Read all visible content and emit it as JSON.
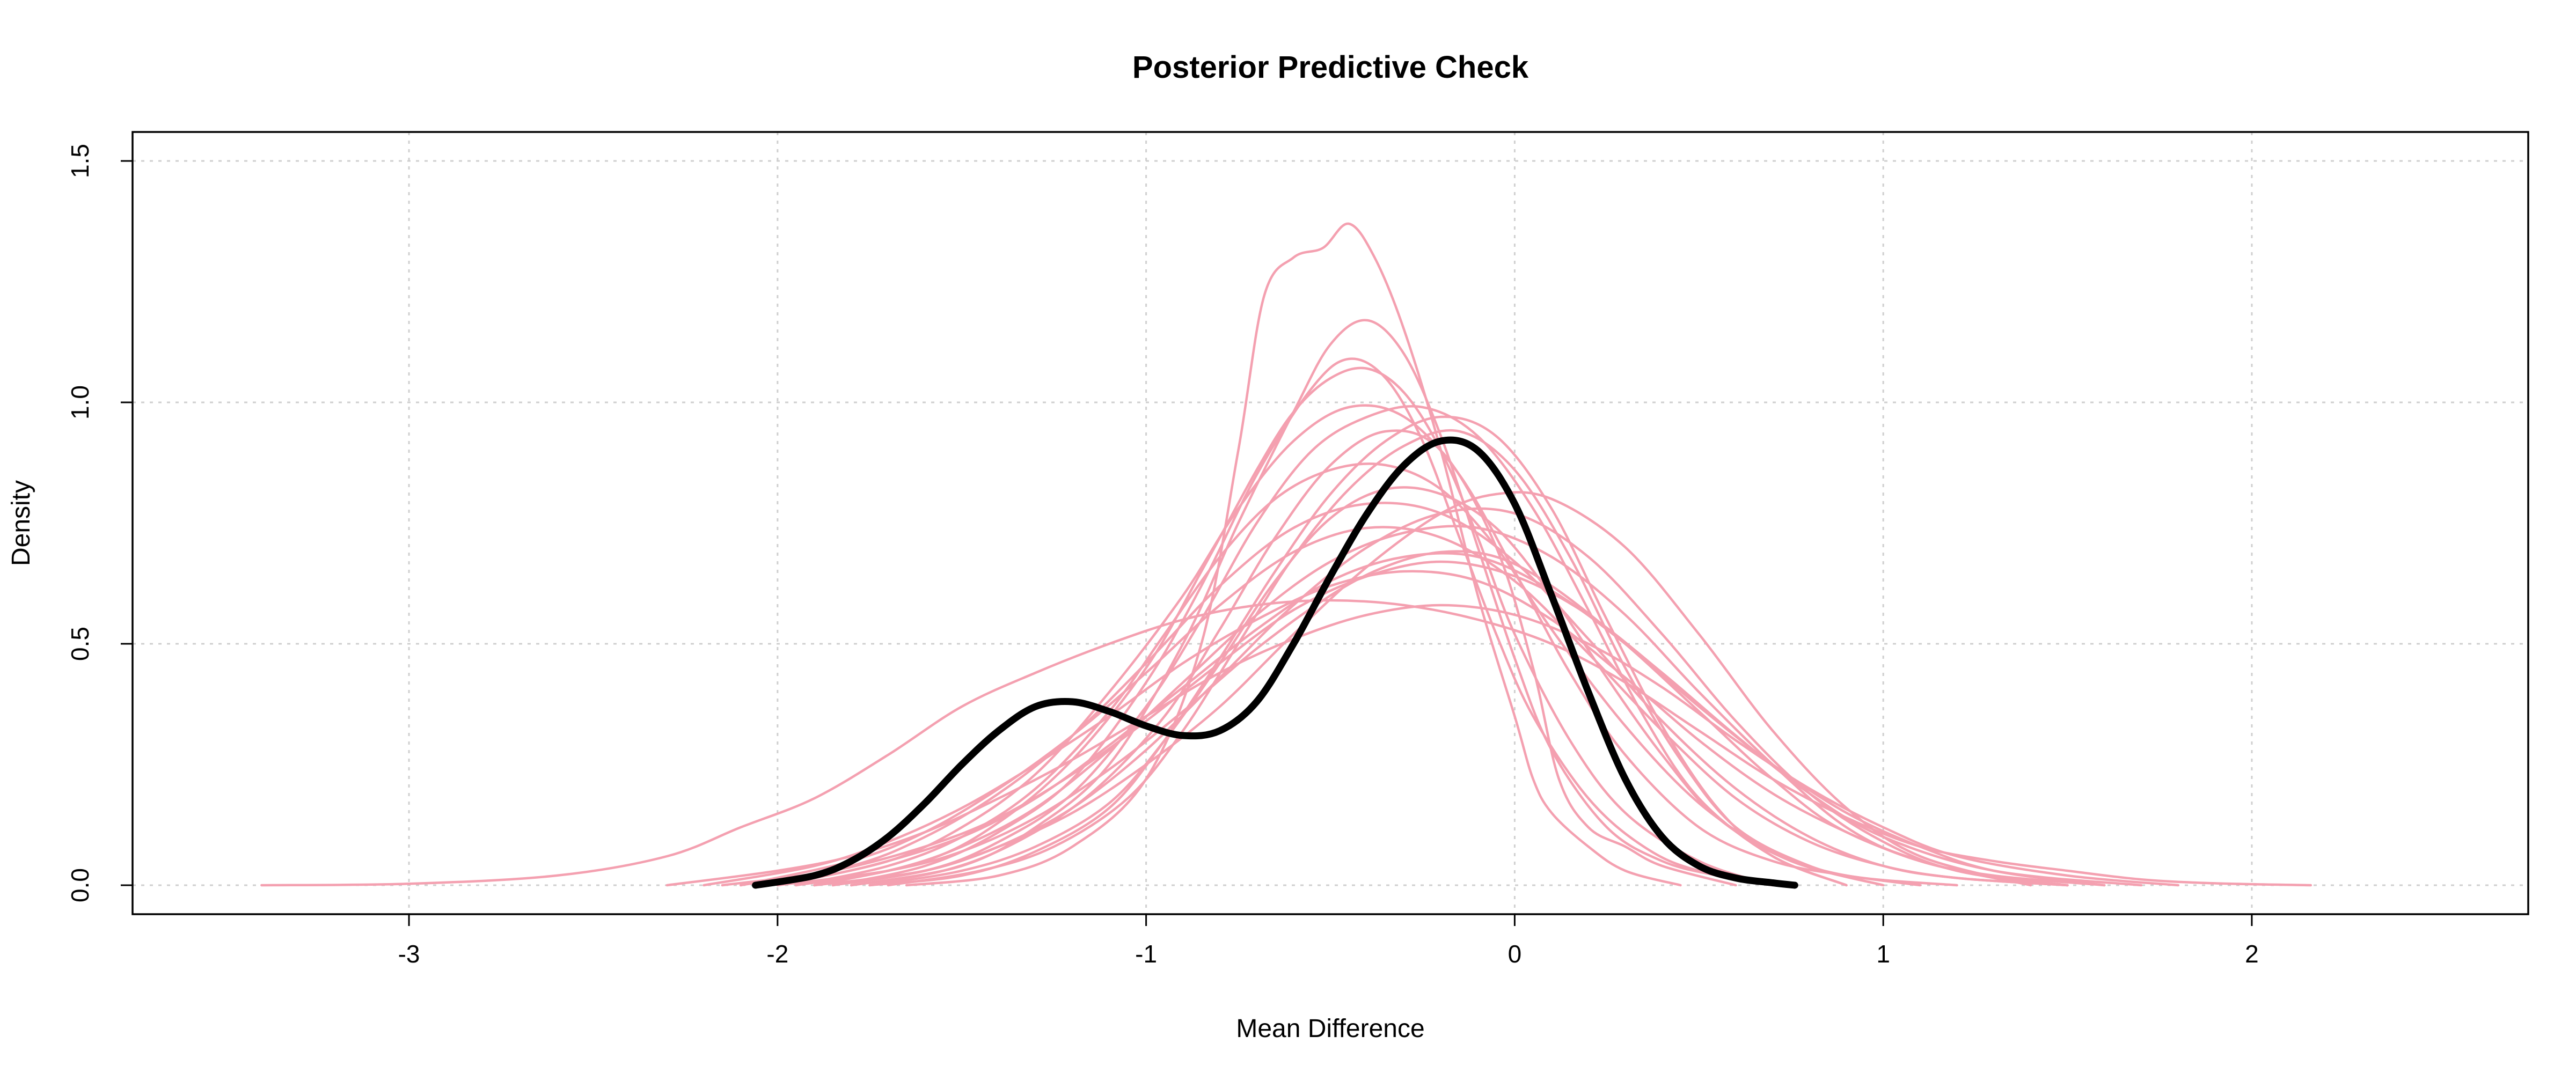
{
  "chart_data": {
    "type": "line",
    "title": "Posterior Predictive Check",
    "xlabel": "Mean Difference",
    "ylabel": "Density",
    "xlim": [
      -3.75,
      2.75
    ],
    "ylim": [
      -0.06,
      1.56
    ],
    "x_ticks": [
      -3,
      -2,
      -1,
      0,
      1,
      2
    ],
    "x_tick_labels": [
      "-3",
      "-2",
      "-1",
      "0",
      "1",
      "2"
    ],
    "y_ticks": [
      0,
      0.5,
      1,
      1.5
    ],
    "y_tick_labels": [
      "0.0",
      "0.5",
      "1.0",
      "1.5"
    ],
    "grid": true,
    "colors": {
      "replicated": "#f4a0b0",
      "observed": "#000000"
    },
    "observed": {
      "x": [
        -2.06,
        -1.9,
        -1.8,
        -1.7,
        -1.6,
        -1.5,
        -1.4,
        -1.3,
        -1.2,
        -1.1,
        -1.0,
        -0.9,
        -0.8,
        -0.7,
        -0.6,
        -0.5,
        -0.4,
        -0.3,
        -0.2,
        -0.1,
        0.0,
        0.1,
        0.2,
        0.3,
        0.4,
        0.5,
        0.6,
        0.7,
        0.76
      ],
      "y": [
        0.0,
        0.02,
        0.05,
        0.1,
        0.17,
        0.25,
        0.32,
        0.37,
        0.38,
        0.36,
        0.33,
        0.31,
        0.32,
        0.38,
        0.5,
        0.64,
        0.77,
        0.87,
        0.92,
        0.9,
        0.79,
        0.6,
        0.4,
        0.22,
        0.1,
        0.04,
        0.015,
        0.005,
        0.0
      ]
    },
    "replicated": [
      {
        "x": [
          -3.4,
          -3.0,
          -2.6,
          -2.3,
          -2.1,
          -1.9,
          -1.7,
          -1.5,
          -1.3,
          -1.1,
          -0.9,
          -0.7,
          -0.5,
          -0.3,
          -0.1,
          0.1,
          0.3,
          0.5,
          0.7,
          0.9,
          1.1,
          1.3,
          1.5,
          1.7,
          1.9,
          2.16
        ],
        "y": [
          0.0,
          0.003,
          0.02,
          0.06,
          0.12,
          0.18,
          0.27,
          0.37,
          0.44,
          0.5,
          0.55,
          0.58,
          0.59,
          0.58,
          0.55,
          0.5,
          0.42,
          0.32,
          0.22,
          0.14,
          0.08,
          0.05,
          0.03,
          0.012,
          0.004,
          0.0
        ]
      },
      {
        "x": [
          -1.65,
          -1.4,
          -1.2,
          -1.0,
          -0.85,
          -0.75,
          -0.68,
          -0.6,
          -0.52,
          -0.45,
          -0.38,
          -0.3,
          -0.2,
          -0.1,
          0.0,
          0.05,
          0.1,
          0.2,
          0.3,
          0.45
        ],
        "y": [
          0.0,
          0.02,
          0.08,
          0.22,
          0.5,
          0.9,
          1.22,
          1.3,
          1.32,
          1.37,
          1.3,
          1.15,
          0.9,
          0.6,
          0.35,
          0.22,
          0.15,
          0.08,
          0.03,
          0.0
        ]
      },
      {
        "x": [
          -1.8,
          -1.5,
          -1.3,
          -1.1,
          -0.9,
          -0.75,
          -0.6,
          -0.5,
          -0.4,
          -0.3,
          -0.2,
          -0.1,
          0.0,
          0.1,
          0.25,
          0.4,
          0.55,
          0.7
        ],
        "y": [
          0.0,
          0.04,
          0.12,
          0.25,
          0.5,
          0.75,
          0.98,
          1.12,
          1.17,
          1.1,
          0.93,
          0.7,
          0.47,
          0.28,
          0.12,
          0.05,
          0.02,
          0.0
        ]
      },
      {
        "x": [
          -1.9,
          -1.6,
          -1.4,
          -1.2,
          -1.0,
          -0.85,
          -0.7,
          -0.6,
          -0.5,
          -0.4,
          -0.3,
          -0.2,
          -0.1,
          0.0,
          0.15,
          0.3,
          0.5,
          0.7
        ],
        "y": [
          0.0,
          0.05,
          0.13,
          0.26,
          0.45,
          0.65,
          0.86,
          0.98,
          1.05,
          1.07,
          1.02,
          0.9,
          0.72,
          0.52,
          0.3,
          0.15,
          0.05,
          0.0
        ]
      },
      {
        "x": [
          -1.85,
          -1.6,
          -1.4,
          -1.2,
          -1.0,
          -0.85,
          -0.7,
          -0.55,
          -0.45,
          -0.35,
          -0.25,
          -0.15,
          -0.05,
          0.05,
          0.2,
          0.35,
          0.5,
          0.75
        ],
        "y": [
          0.0,
          0.04,
          0.11,
          0.22,
          0.42,
          0.62,
          0.85,
          1.03,
          1.09,
          1.05,
          0.92,
          0.72,
          0.52,
          0.35,
          0.18,
          0.08,
          0.03,
          0.0
        ]
      },
      {
        "x": [
          -2.0,
          -1.7,
          -1.5,
          -1.3,
          -1.1,
          -0.9,
          -0.75,
          -0.6,
          -0.45,
          -0.3,
          -0.15,
          0.0,
          0.15,
          0.3,
          0.5,
          0.7,
          0.9,
          1.1
        ],
        "y": [
          0.0,
          0.05,
          0.12,
          0.23,
          0.4,
          0.6,
          0.78,
          0.92,
          0.99,
          0.97,
          0.85,
          0.65,
          0.44,
          0.27,
          0.12,
          0.05,
          0.02,
          0.0
        ]
      },
      {
        "x": [
          -1.95,
          -1.7,
          -1.5,
          -1.3,
          -1.1,
          -0.95,
          -0.8,
          -0.65,
          -0.5,
          -0.35,
          -0.2,
          -0.05,
          0.1,
          0.3,
          0.5,
          0.7,
          0.9,
          1.2
        ],
        "y": [
          0.0,
          0.04,
          0.1,
          0.2,
          0.36,
          0.52,
          0.68,
          0.8,
          0.86,
          0.87,
          0.82,
          0.7,
          0.53,
          0.33,
          0.17,
          0.07,
          0.02,
          0.0
        ]
      },
      {
        "x": [
          -2.1,
          -1.8,
          -1.6,
          -1.4,
          -1.2,
          -1.0,
          -0.8,
          -0.6,
          -0.4,
          -0.2,
          0.0,
          0.2,
          0.4,
          0.6,
          0.8,
          1.0,
          1.2,
          1.5
        ],
        "y": [
          0.0,
          0.05,
          0.11,
          0.2,
          0.31,
          0.44,
          0.58,
          0.69,
          0.74,
          0.72,
          0.63,
          0.48,
          0.32,
          0.18,
          0.09,
          0.04,
          0.015,
          0.0
        ]
      },
      {
        "x": [
          -2.2,
          -1.9,
          -1.7,
          -1.5,
          -1.3,
          -1.1,
          -0.9,
          -0.7,
          -0.5,
          -0.3,
          -0.1,
          0.1,
          0.3,
          0.5,
          0.7,
          0.9,
          1.1,
          1.3,
          1.6
        ],
        "y": [
          0.0,
          0.04,
          0.09,
          0.16,
          0.25,
          0.35,
          0.46,
          0.55,
          0.62,
          0.65,
          0.63,
          0.55,
          0.43,
          0.3,
          0.19,
          0.11,
          0.05,
          0.02,
          0.0
        ]
      },
      {
        "x": [
          -1.9,
          -1.6,
          -1.4,
          -1.2,
          -1.0,
          -0.85,
          -0.7,
          -0.55,
          -0.4,
          -0.25,
          -0.1,
          0.05,
          0.2,
          0.35,
          0.5,
          0.7,
          0.9
        ],
        "y": [
          0.0,
          0.03,
          0.09,
          0.19,
          0.37,
          0.55,
          0.75,
          0.9,
          0.97,
          0.99,
          0.93,
          0.78,
          0.57,
          0.35,
          0.18,
          0.06,
          0.0
        ]
      },
      {
        "x": [
          -1.7,
          -1.45,
          -1.25,
          -1.05,
          -0.9,
          -0.75,
          -0.6,
          -0.45,
          -0.3,
          -0.15,
          0.0,
          0.15,
          0.3,
          0.45,
          0.6,
          0.8,
          1.0
        ],
        "y": [
          0.0,
          0.03,
          0.08,
          0.18,
          0.32,
          0.5,
          0.68,
          0.82,
          0.91,
          0.94,
          0.86,
          0.68,
          0.45,
          0.26,
          0.12,
          0.04,
          0.0
        ]
      },
      {
        "x": [
          -1.75,
          -1.5,
          -1.3,
          -1.1,
          -0.95,
          -0.8,
          -0.65,
          -0.5,
          -0.35,
          -0.2,
          -0.05,
          0.1,
          0.25,
          0.4,
          0.55,
          0.7,
          0.9
        ],
        "y": [
          0.0,
          0.02,
          0.07,
          0.16,
          0.3,
          0.47,
          0.65,
          0.81,
          0.92,
          0.97,
          0.93,
          0.78,
          0.55,
          0.33,
          0.16,
          0.06,
          0.0
        ]
      },
      {
        "x": [
          -2.0,
          -1.75,
          -1.5,
          -1.3,
          -1.1,
          -0.9,
          -0.7,
          -0.5,
          -0.3,
          -0.1,
          0.1,
          0.3,
          0.5,
          0.7,
          0.9,
          1.1,
          1.3,
          1.6
        ],
        "y": [
          0.0,
          0.04,
          0.1,
          0.18,
          0.29,
          0.41,
          0.53,
          0.63,
          0.68,
          0.68,
          0.61,
          0.5,
          0.37,
          0.25,
          0.15,
          0.08,
          0.03,
          0.0
        ]
      },
      {
        "x": [
          -1.85,
          -1.6,
          -1.4,
          -1.2,
          -1.0,
          -0.8,
          -0.6,
          -0.4,
          -0.2,
          0.0,
          0.2,
          0.4,
          0.6,
          0.8,
          1.0,
          1.2,
          1.5
        ],
        "y": [
          0.0,
          0.03,
          0.08,
          0.16,
          0.28,
          0.43,
          0.58,
          0.7,
          0.77,
          0.77,
          0.68,
          0.52,
          0.34,
          0.19,
          0.09,
          0.03,
          0.0
        ]
      },
      {
        "x": [
          -2.1,
          -1.8,
          -1.6,
          -1.4,
          -1.2,
          -1.0,
          -0.8,
          -0.6,
          -0.4,
          -0.2,
          0.0,
          0.2,
          0.4,
          0.6,
          0.8,
          1.0,
          1.2,
          1.5
        ],
        "y": [
          0.0,
          0.04,
          0.1,
          0.19,
          0.31,
          0.46,
          0.62,
          0.74,
          0.79,
          0.77,
          0.67,
          0.51,
          0.34,
          0.2,
          0.1,
          0.04,
          0.015,
          0.0
        ]
      },
      {
        "x": [
          -1.9,
          -1.6,
          -1.4,
          -1.2,
          -1.0,
          -0.8,
          -0.6,
          -0.4,
          -0.2,
          -0.05,
          0.1,
          0.3,
          0.5,
          0.7,
          0.9,
          1.1,
          1.4
        ],
        "y": [
          0.0,
          0.03,
          0.08,
          0.15,
          0.25,
          0.37,
          0.52,
          0.66,
          0.77,
          0.81,
          0.8,
          0.7,
          0.52,
          0.32,
          0.16,
          0.06,
          0.0
        ]
      },
      {
        "x": [
          -2.3,
          -2.0,
          -1.8,
          -1.6,
          -1.4,
          -1.2,
          -1.0,
          -0.8,
          -0.6,
          -0.4,
          -0.2,
          0.0,
          0.2,
          0.4,
          0.6,
          0.8,
          1.0,
          1.2,
          1.5,
          1.8
        ],
        "y": [
          0.0,
          0.03,
          0.06,
          0.11,
          0.18,
          0.26,
          0.35,
          0.44,
          0.51,
          0.56,
          0.58,
          0.56,
          0.5,
          0.41,
          0.3,
          0.2,
          0.12,
          0.06,
          0.02,
          0.0
        ]
      },
      {
        "x": [
          -2.0,
          -1.7,
          -1.5,
          -1.3,
          -1.1,
          -0.9,
          -0.7,
          -0.5,
          -0.35,
          -0.2,
          -0.05,
          0.1,
          0.3,
          0.5,
          0.7,
          0.9,
          1.2,
          1.5
        ],
        "y": [
          0.0,
          0.03,
          0.07,
          0.14,
          0.24,
          0.36,
          0.49,
          0.6,
          0.66,
          0.69,
          0.68,
          0.62,
          0.5,
          0.36,
          0.22,
          0.11,
          0.03,
          0.0
        ]
      },
      {
        "x": [
          -1.8,
          -1.55,
          -1.35,
          -1.15,
          -0.95,
          -0.8,
          -0.65,
          -0.5,
          -0.35,
          -0.2,
          -0.05,
          0.05,
          0.12,
          0.2,
          0.3,
          0.4,
          0.6
        ],
        "y": [
          0.0,
          0.03,
          0.09,
          0.19,
          0.35,
          0.53,
          0.72,
          0.87,
          0.94,
          0.9,
          0.7,
          0.45,
          0.22,
          0.12,
          0.08,
          0.04,
          0.0
        ]
      },
      {
        "x": [
          -1.95,
          -1.7,
          -1.5,
          -1.3,
          -1.1,
          -0.9,
          -0.7,
          -0.5,
          -0.3,
          -0.1,
          0.1,
          0.3,
          0.5,
          0.7,
          0.9,
          1.1,
          1.4
        ],
        "y": [
          0.0,
          0.03,
          0.08,
          0.16,
          0.28,
          0.42,
          0.56,
          0.67,
          0.73,
          0.74,
          0.68,
          0.56,
          0.4,
          0.25,
          0.12,
          0.05,
          0.0
        ]
      },
      {
        "x": [
          -1.75,
          -1.5,
          -1.3,
          -1.1,
          -0.95,
          -0.8,
          -0.65,
          -0.5,
          -0.35,
          -0.2,
          -0.05,
          0.1,
          0.25,
          0.4,
          0.55,
          0.75,
          1.0
        ],
        "y": [
          0.0,
          0.03,
          0.08,
          0.17,
          0.3,
          0.46,
          0.63,
          0.76,
          0.82,
          0.81,
          0.74,
          0.6,
          0.43,
          0.27,
          0.14,
          0.05,
          0.0
        ]
      },
      {
        "x": [
          -2.15,
          -1.85,
          -1.6,
          -1.4,
          -1.2,
          -1.0,
          -0.8,
          -0.6,
          -0.4,
          -0.2,
          0.0,
          0.2,
          0.4,
          0.6,
          0.8,
          1.0,
          1.3,
          1.7
        ],
        "y": [
          0.0,
          0.03,
          0.08,
          0.14,
          0.23,
          0.34,
          0.46,
          0.57,
          0.64,
          0.67,
          0.64,
          0.56,
          0.44,
          0.31,
          0.19,
          0.1,
          0.03,
          0.0
        ]
      }
    ]
  }
}
